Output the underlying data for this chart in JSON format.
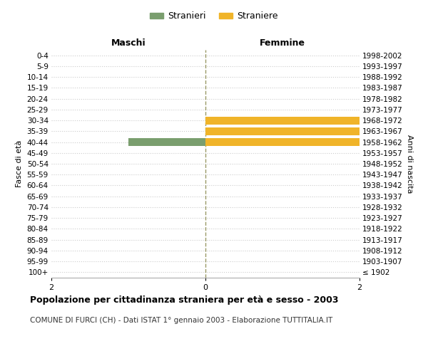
{
  "age_groups": [
    "100+",
    "95-99",
    "90-94",
    "85-89",
    "80-84",
    "75-79",
    "70-74",
    "65-69",
    "60-64",
    "55-59",
    "50-54",
    "45-49",
    "40-44",
    "35-39",
    "30-34",
    "25-29",
    "20-24",
    "15-19",
    "10-14",
    "5-9",
    "0-4"
  ],
  "birth_years": [
    "≤ 1902",
    "1903-1907",
    "1908-1912",
    "1913-1917",
    "1918-1922",
    "1923-1927",
    "1928-1932",
    "1933-1937",
    "1938-1942",
    "1943-1947",
    "1948-1952",
    "1953-1957",
    "1958-1962",
    "1963-1967",
    "1968-1972",
    "1973-1977",
    "1978-1982",
    "1983-1987",
    "1988-1992",
    "1993-1997",
    "1998-2002"
  ],
  "males": [
    0,
    0,
    0,
    0,
    0,
    0,
    0,
    0,
    0,
    0,
    0,
    0,
    1,
    0,
    0,
    0,
    0,
    0,
    0,
    0,
    0
  ],
  "females": [
    0,
    0,
    0,
    0,
    0,
    0,
    0,
    0,
    0,
    0,
    0,
    0,
    2,
    2,
    2,
    0,
    0,
    0,
    0,
    0,
    0
  ],
  "male_color": "#7a9e6e",
  "female_color": "#f0b429",
  "xlim": 2,
  "title": "Popolazione per cittadinanza straniera per età e sesso - 2003",
  "subtitle": "COMUNE DI FURCI (CH) - Dati ISTAT 1° gennaio 2003 - Elaborazione TUTTITALIA.IT",
  "legend_male": "Stranieri",
  "legend_female": "Straniere",
  "label_maschi": "Maschi",
  "label_femmine": "Femmine",
  "ylabel_left": "Fasce di età",
  "ylabel_right": "Anni di nascita",
  "background_color": "#ffffff",
  "grid_color": "#cccccc",
  "center_line_color": "#999966"
}
